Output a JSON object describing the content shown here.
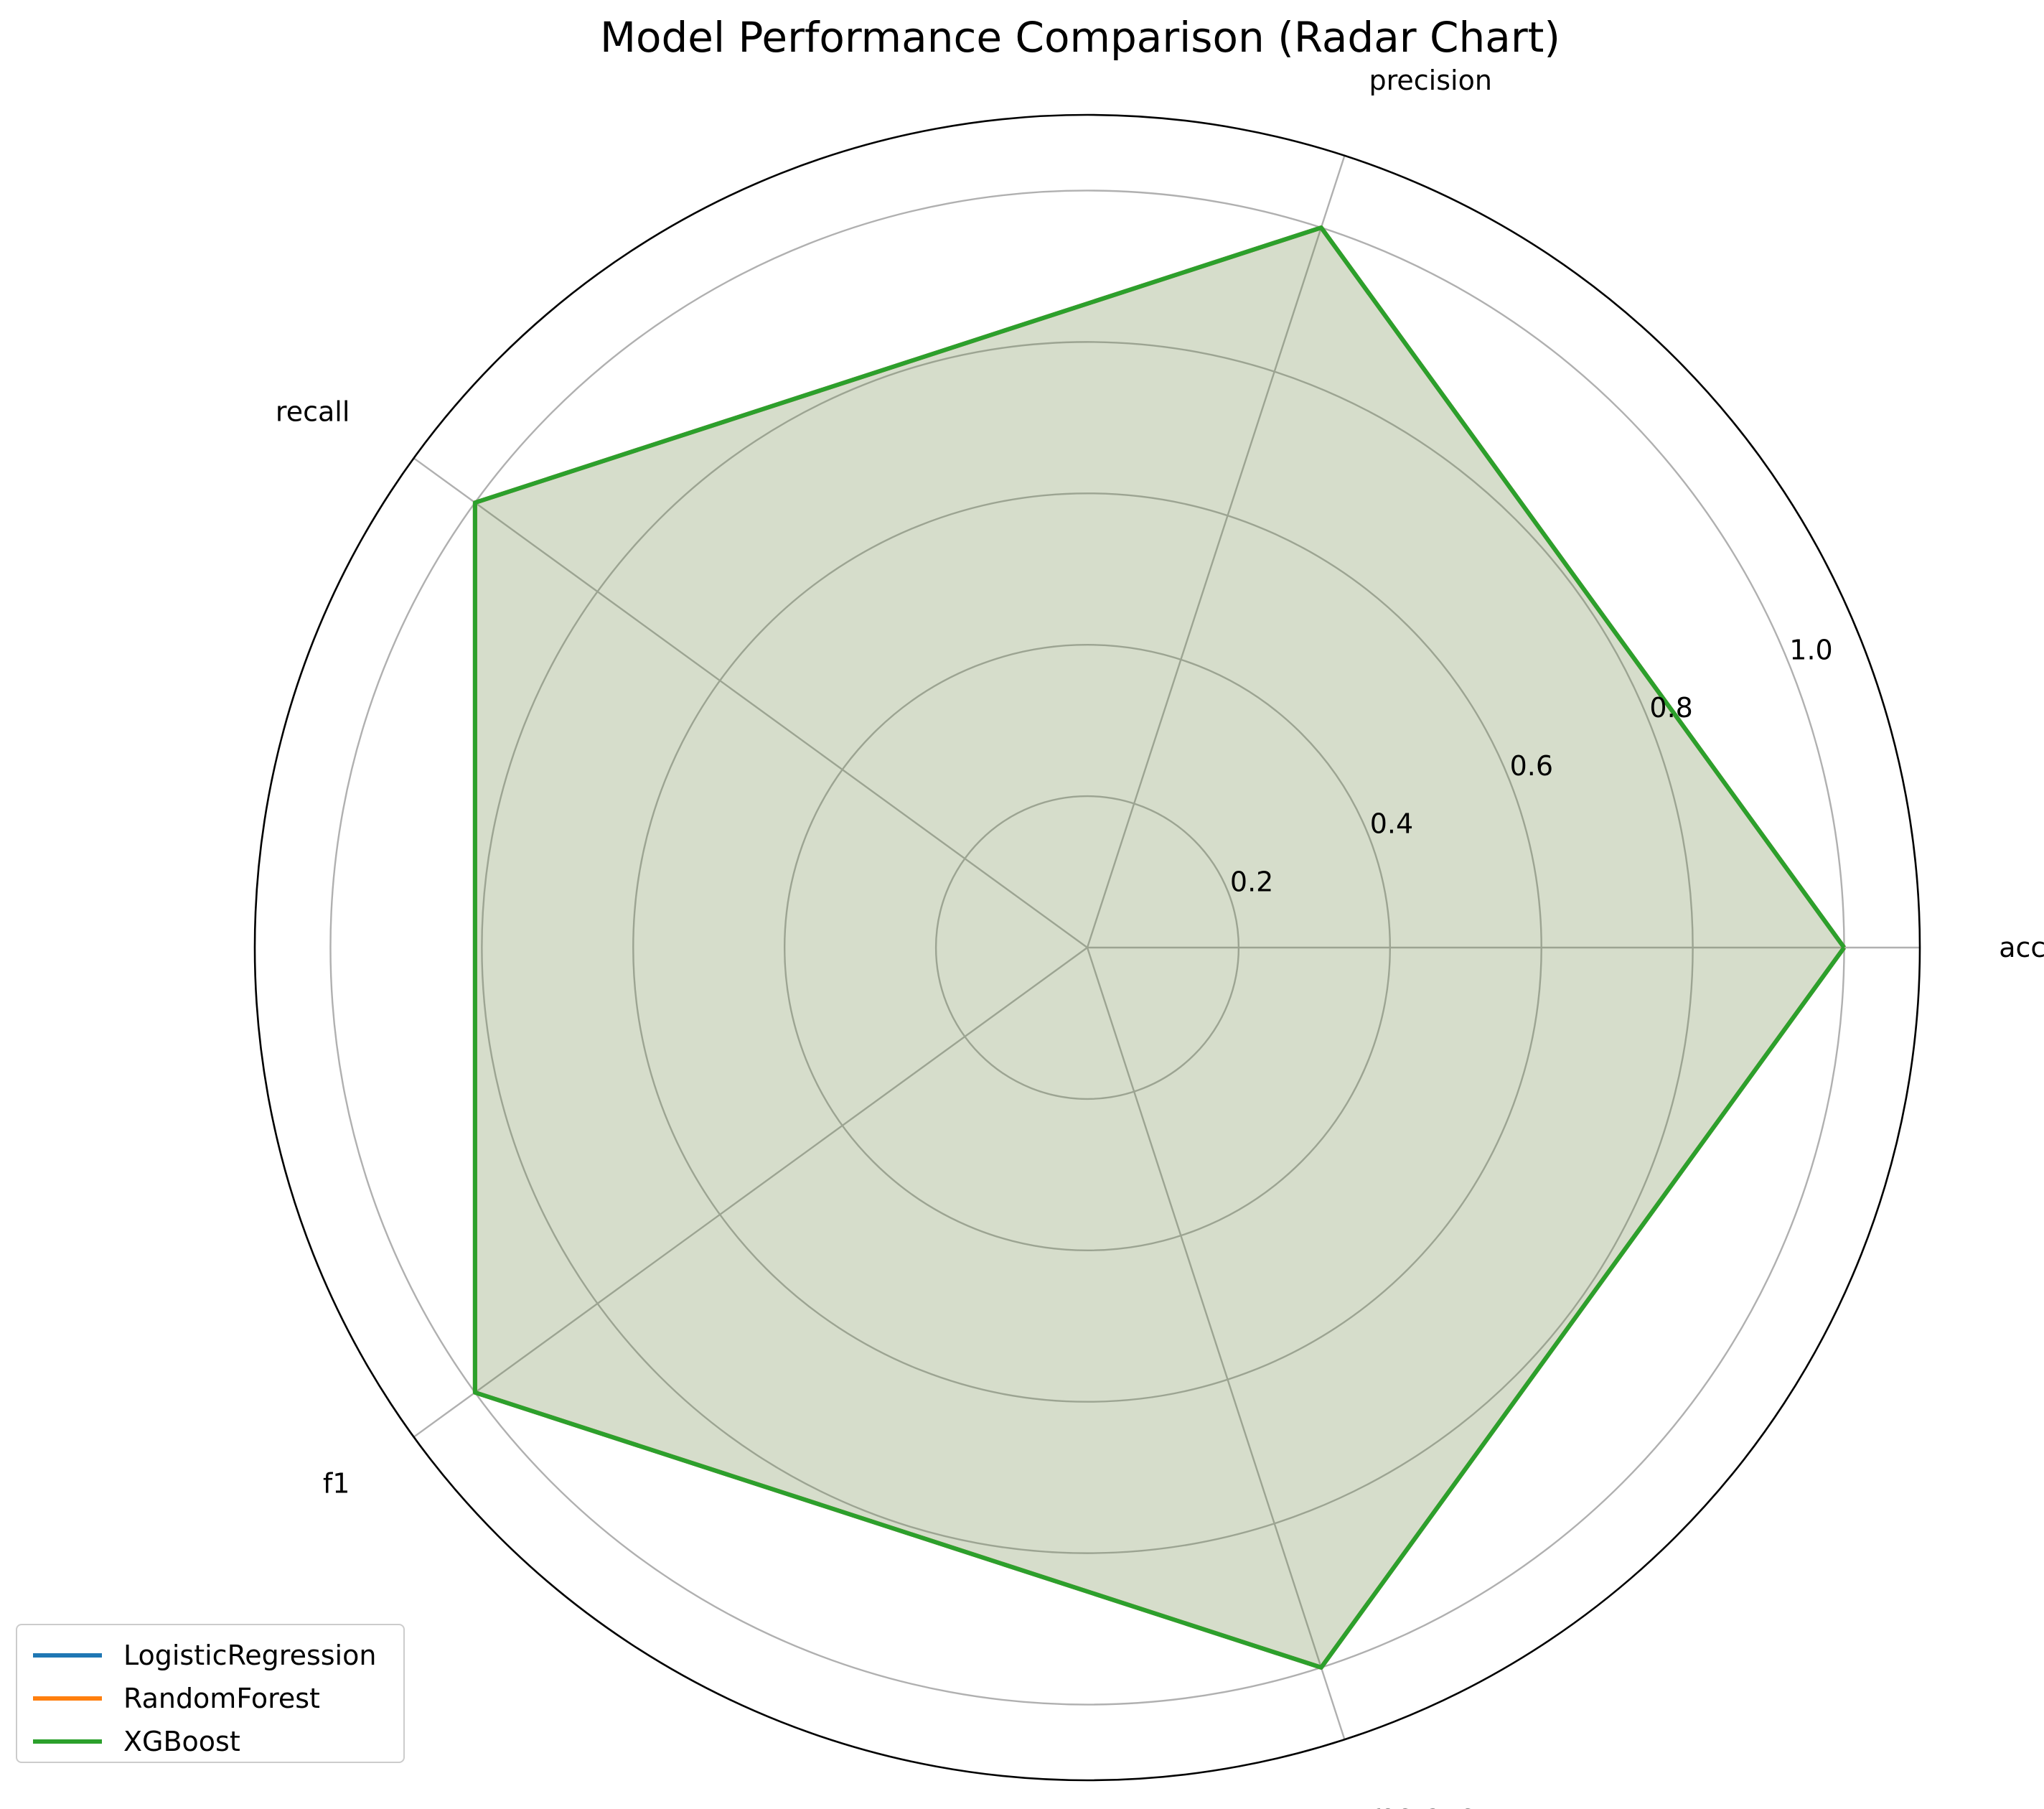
{
  "chart_data": {
    "type": "radar",
    "title": "Model Performance Comparison (Radar Chart)",
    "axes": [
      "accuracy",
      "precision",
      "recall",
      "f1",
      "roc_auc"
    ],
    "radial_ticks": [
      0.2,
      0.4,
      0.6,
      0.8,
      1.0
    ],
    "radial_tick_labels": [
      "0.2",
      "0.4",
      "0.6",
      "0.8",
      "1.0"
    ],
    "rlim": [
      0,
      1.1
    ],
    "grid": true,
    "legend_position": "bottom-left",
    "series": [
      {
        "name": "LogisticRegression",
        "color": "#1f77b4",
        "values": [
          1.0,
          1.0,
          1.0,
          1.0,
          1.0
        ]
      },
      {
        "name": "RandomForest",
        "color": "#ff7f0e",
        "values": [
          1.0,
          1.0,
          1.0,
          1.0,
          1.0
        ]
      },
      {
        "name": "XGBoost",
        "color": "#2ca02c",
        "values": [
          1.0,
          1.0,
          1.0,
          1.0,
          1.0
        ]
      }
    ]
  }
}
